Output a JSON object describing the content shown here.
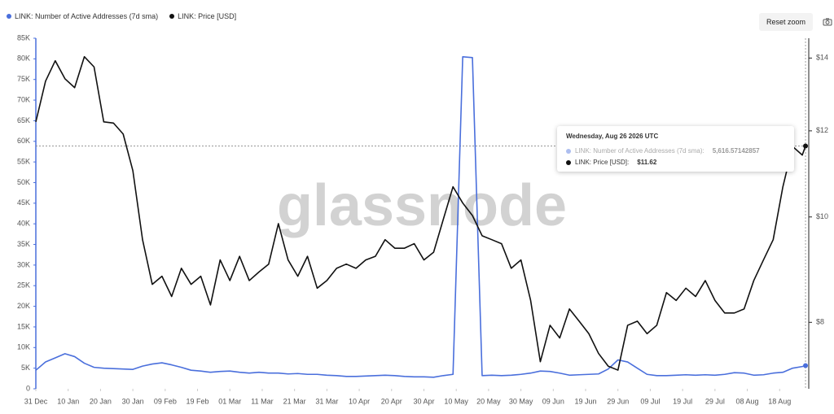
{
  "chart_data": {
    "type": "line",
    "watermark": "glassnode",
    "reset_button": "Reset zoom",
    "x": [
      "2025-12-31",
      "2026-01-03",
      "2026-01-06",
      "2026-01-09",
      "2026-01-12",
      "2026-01-15",
      "2026-01-18",
      "2026-01-21",
      "2026-01-24",
      "2026-01-27",
      "2026-01-30",
      "2026-02-02",
      "2026-02-05",
      "2026-02-08",
      "2026-02-11",
      "2026-02-14",
      "2026-02-17",
      "2026-02-20",
      "2026-02-23",
      "2026-02-26",
      "2026-03-01",
      "2026-03-04",
      "2026-03-07",
      "2026-03-10",
      "2026-03-13",
      "2026-03-16",
      "2026-03-19",
      "2026-03-22",
      "2026-03-25",
      "2026-03-28",
      "2026-03-31",
      "2026-04-03",
      "2026-04-06",
      "2026-04-09",
      "2026-04-12",
      "2026-04-15",
      "2026-04-18",
      "2026-04-21",
      "2026-04-24",
      "2026-04-27",
      "2026-04-30",
      "2026-05-03",
      "2026-05-06",
      "2026-05-09",
      "2026-05-12",
      "2026-05-15",
      "2026-05-18",
      "2026-05-21",
      "2026-05-24",
      "2026-05-27",
      "2026-05-30",
      "2026-06-02",
      "2026-06-05",
      "2026-06-08",
      "2026-06-11",
      "2026-06-14",
      "2026-06-17",
      "2026-06-20",
      "2026-06-23",
      "2026-06-26",
      "2026-06-29",
      "2026-07-02",
      "2026-07-05",
      "2026-07-08",
      "2026-07-11",
      "2026-07-14",
      "2026-07-17",
      "2026-07-20",
      "2026-07-23",
      "2026-07-26",
      "2026-07-29",
      "2026-08-01",
      "2026-08-04",
      "2026-08-07",
      "2026-08-10",
      "2026-08-13",
      "2026-08-16",
      "2026-08-19",
      "2026-08-22",
      "2026-08-25",
      "2026-08-26"
    ],
    "series": [
      {
        "name": "LINK: Number of Active Addresses (7d sma)",
        "color": "#4a6fdc",
        "axis": "y",
        "values": [
          4500,
          6500,
          7500,
          8500,
          7800,
          6200,
          5200,
          5000,
          4900,
          4800,
          4700,
          5500,
          6000,
          6300,
          5800,
          5200,
          4500,
          4300,
          4000,
          4200,
          4300,
          4000,
          3800,
          4000,
          3800,
          3800,
          3600,
          3700,
          3500,
          3500,
          3300,
          3200,
          3000,
          3000,
          3100,
          3200,
          3300,
          3200,
          3000,
          2900,
          2900,
          2800,
          3200,
          3500,
          80500,
          80300,
          3200,
          3300,
          3200,
          3300,
          3500,
          3800,
          4300,
          4200,
          3800,
          3300,
          3400,
          3500,
          3600,
          4800,
          7000,
          6500,
          5000,
          3500,
          3200,
          3200,
          3300,
          3400,
          3300,
          3400,
          3300,
          3500,
          3900,
          3800,
          3300,
          3400,
          3800,
          4000,
          5000,
          5400,
          5616.57142857
        ]
      },
      {
        "name": "LINK: Price [USD]",
        "color": "#111111",
        "axis": "y2",
        "values": [
          12.23,
          13.33,
          13.92,
          13.4,
          13.15,
          14.04,
          13.74,
          12.23,
          12.2,
          11.92,
          11.03,
          9.53,
          8.67,
          8.82,
          8.45,
          8.97,
          8.67,
          8.82,
          8.3,
          9.13,
          8.74,
          9.2,
          8.74,
          8.9,
          9.05,
          9.86,
          9.13,
          8.82,
          9.2,
          8.6,
          8.74,
          8.97,
          9.05,
          8.97,
          9.13,
          9.2,
          9.53,
          9.36,
          9.36,
          9.45,
          9.13,
          9.28,
          9.95,
          10.66,
          10.3,
          10.03,
          9.61,
          9.53,
          9.45,
          8.97,
          9.13,
          8.38,
          7.36,
          7.95,
          7.74,
          8.23,
          8.02,
          7.81,
          7.49,
          7.29,
          7.23,
          7.95,
          8.02,
          7.81,
          7.95,
          8.52,
          8.38,
          8.6,
          8.45,
          8.74,
          8.38,
          8.16,
          8.16,
          8.23,
          8.74,
          9.13,
          9.53,
          10.66,
          11.61,
          11.4,
          11.62
        ]
      }
    ],
    "xlim": [
      "2025-12-31",
      "2026-08-27"
    ],
    "xticks": [
      {
        "value": "2025-12-31",
        "label": "31 Dec"
      },
      {
        "value": "2026-01-10",
        "label": "10 Jan"
      },
      {
        "value": "2026-01-20",
        "label": "20 Jan"
      },
      {
        "value": "2026-01-30",
        "label": "30 Jan"
      },
      {
        "value": "2026-02-09",
        "label": "09 Feb"
      },
      {
        "value": "2026-02-19",
        "label": "19 Feb"
      },
      {
        "value": "2026-03-01",
        "label": "01 Mar"
      },
      {
        "value": "2026-03-11",
        "label": "11 Mar"
      },
      {
        "value": "2026-03-21",
        "label": "21 Mar"
      },
      {
        "value": "2026-03-31",
        "label": "31 Mar"
      },
      {
        "value": "2026-04-10",
        "label": "10 Apr"
      },
      {
        "value": "2026-04-20",
        "label": "20 Apr"
      },
      {
        "value": "2026-04-30",
        "label": "30 Apr"
      },
      {
        "value": "2026-05-10",
        "label": "10 May"
      },
      {
        "value": "2026-05-20",
        "label": "20 May"
      },
      {
        "value": "2026-05-30",
        "label": "30 May"
      },
      {
        "value": "2026-06-09",
        "label": "09 Jun"
      },
      {
        "value": "2026-06-19",
        "label": "19 Jun"
      },
      {
        "value": "2026-06-29",
        "label": "29 Jun"
      },
      {
        "value": "2026-07-09",
        "label": "09 Jul"
      },
      {
        "value": "2026-07-19",
        "label": "19 Jul"
      },
      {
        "value": "2026-07-29",
        "label": "29 Jul"
      },
      {
        "value": "2026-08-08",
        "label": "08 Aug"
      },
      {
        "value": "2026-08-18",
        "label": "18 Aug"
      }
    ],
    "ylim": [
      0,
      85000
    ],
    "yticks": [
      0,
      {
        "value": 5000,
        "label": "5K"
      },
      {
        "value": 10000,
        "label": "10K"
      },
      {
        "value": 15000,
        "label": "15K"
      },
      {
        "value": 20000,
        "label": "20K"
      },
      {
        "value": 25000,
        "label": "25K"
      },
      {
        "value": 30000,
        "label": "30K"
      },
      {
        "value": 35000,
        "label": "35K"
      },
      {
        "value": 40000,
        "label": "40K"
      },
      {
        "value": 45000,
        "label": "45K"
      },
      {
        "value": 50000,
        "label": "50K"
      },
      {
        "value": 55000,
        "label": "55K"
      },
      {
        "value": 60000,
        "label": "60K"
      },
      {
        "value": 65000,
        "label": "65K"
      },
      {
        "value": 70000,
        "label": "70K"
      },
      {
        "value": 75000,
        "label": "75K"
      },
      {
        "value": 80000,
        "label": "80K"
      },
      {
        "value": 85000,
        "label": "85K"
      }
    ],
    "y2lim": [
      6.95,
      14.6
    ],
    "y2scale": "log",
    "y2ticks": [
      {
        "value": 8,
        "label": "$8"
      },
      {
        "value": 10,
        "label": "$10"
      },
      {
        "value": 12,
        "label": "$12"
      },
      {
        "value": 14,
        "label": "$14"
      }
    ],
    "grid": false,
    "tooltip": {
      "title": "Wednesday, Aug 26 2026 UTC",
      "items": [
        "5,616.57142857",
        "$11.62"
      ]
    }
  }
}
